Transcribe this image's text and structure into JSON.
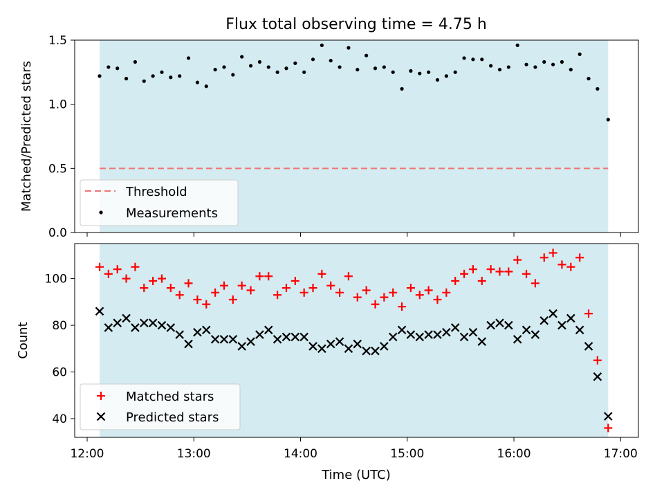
{
  "chart_data": [
    {
      "type": "scatter",
      "title": "Flux total observing time = 4.75 h",
      "ylabel": "Matched/Predicted stars",
      "xlabel": "",
      "ylim": [
        0,
        1.5
      ],
      "xlim": [
        "11:53",
        "17:10"
      ],
      "yticks": [
        0,
        0.5,
        1.0,
        1.5
      ],
      "ytick_labels": [
        "0.0",
        "0.5",
        "1.0",
        "1.5"
      ],
      "observing_window": [
        "12:07",
        "16:53"
      ],
      "observing_window_color": "#d4ebf1",
      "grid": false,
      "legend_position": "lower-left",
      "threshold": {
        "name": "Threshold",
        "value": 0.5,
        "color": "#f07575",
        "style": "dashed"
      },
      "series": [
        {
          "name": "Measurements",
          "color": "#000000",
          "marker": "dot",
          "x": [
            "12:07",
            "12:12",
            "12:17",
            "12:22",
            "12:27",
            "12:32",
            "12:37",
            "12:42",
            "12:47",
            "12:52",
            "12:57",
            "13:02",
            "13:07",
            "13:12",
            "13:17",
            "13:22",
            "13:27",
            "13:32",
            "13:37",
            "13:42",
            "13:47",
            "13:52",
            "13:57",
            "14:02",
            "14:07",
            "14:12",
            "14:17",
            "14:22",
            "14:27",
            "14:32",
            "14:37",
            "14:42",
            "14:47",
            "14:52",
            "14:57",
            "15:02",
            "15:07",
            "15:12",
            "15:17",
            "15:22",
            "15:27",
            "15:32",
            "15:37",
            "15:42",
            "15:47",
            "15:52",
            "15:57",
            "16:02",
            "16:07",
            "16:12",
            "16:17",
            "16:22",
            "16:27",
            "16:32",
            "16:37",
            "16:42",
            "16:47",
            "16:53"
          ],
          "values": [
            1.22,
            1.29,
            1.28,
            1.2,
            1.33,
            1.18,
            1.22,
            1.25,
            1.21,
            1.22,
            1.36,
            1.17,
            1.14,
            1.27,
            1.29,
            1.23,
            1.37,
            1.3,
            1.33,
            1.29,
            1.25,
            1.28,
            1.32,
            1.25,
            1.35,
            1.46,
            1.34,
            1.29,
            1.44,
            1.27,
            1.38,
            1.28,
            1.29,
            1.25,
            1.12,
            1.26,
            1.24,
            1.25,
            1.19,
            1.22,
            1.25,
            1.36,
            1.35,
            1.35,
            1.3,
            1.27,
            1.29,
            1.46,
            1.31,
            1.29,
            1.33,
            1.31,
            1.33,
            1.27,
            1.39,
            1.2,
            1.12,
            0.88
          ]
        }
      ]
    },
    {
      "type": "scatter",
      "title": "",
      "ylabel": "Count",
      "xlabel": "Time (UTC)",
      "ylim": [
        32,
        115
      ],
      "xlim": [
        "11:53",
        "17:10"
      ],
      "yticks": [
        40,
        60,
        80,
        100
      ],
      "ytick_labels": [
        "40",
        "60",
        "80",
        "100"
      ],
      "xticks": [
        "12:00",
        "13:00",
        "14:00",
        "15:00",
        "16:00",
        "17:00"
      ],
      "xtick_labels": [
        "12:00",
        "13:00",
        "14:00",
        "15:00",
        "16:00",
        "17:00"
      ],
      "observing_window": [
        "12:07",
        "16:53"
      ],
      "observing_window_color": "#d4ebf1",
      "grid": false,
      "legend_position": "lower-left",
      "series": [
        {
          "name": "Matched stars",
          "color": "#ff0000",
          "marker": "plus",
          "x": [
            "12:07",
            "12:12",
            "12:17",
            "12:22",
            "12:27",
            "12:32",
            "12:37",
            "12:42",
            "12:47",
            "12:52",
            "12:57",
            "13:02",
            "13:07",
            "13:12",
            "13:17",
            "13:22",
            "13:27",
            "13:32",
            "13:37",
            "13:42",
            "13:47",
            "13:52",
            "13:57",
            "14:02",
            "14:07",
            "14:12",
            "14:17",
            "14:22",
            "14:27",
            "14:32",
            "14:37",
            "14:42",
            "14:47",
            "14:52",
            "14:57",
            "15:02",
            "15:07",
            "15:12",
            "15:17",
            "15:22",
            "15:27",
            "15:32",
            "15:37",
            "15:42",
            "15:47",
            "15:52",
            "15:57",
            "16:02",
            "16:07",
            "16:12",
            "16:17",
            "16:22",
            "16:27",
            "16:32",
            "16:37",
            "16:42",
            "16:47",
            "16:53"
          ],
          "values": [
            105,
            102,
            104,
            100,
            105,
            96,
            99,
            100,
            96,
            93,
            98,
            91,
            89,
            94,
            97,
            91,
            97,
            95,
            101,
            101,
            93,
            96,
            99,
            94,
            96,
            102,
            97,
            94,
            101,
            92,
            95,
            89,
            92,
            94,
            88,
            96,
            93,
            95,
            91,
            94,
            99,
            102,
            104,
            99,
            104,
            103,
            103,
            108,
            102,
            98,
            109,
            111,
            106,
            105,
            109,
            85,
            65,
            36
          ]
        },
        {
          "name": "Predicted stars",
          "color": "#000000",
          "marker": "x",
          "x": [
            "12:07",
            "12:12",
            "12:17",
            "12:22",
            "12:27",
            "12:32",
            "12:37",
            "12:42",
            "12:47",
            "12:52",
            "12:57",
            "13:02",
            "13:07",
            "13:12",
            "13:17",
            "13:22",
            "13:27",
            "13:32",
            "13:37",
            "13:42",
            "13:47",
            "13:52",
            "13:57",
            "14:02",
            "14:07",
            "14:12",
            "14:17",
            "14:22",
            "14:27",
            "14:32",
            "14:37",
            "14:42",
            "14:47",
            "14:52",
            "14:57",
            "15:02",
            "15:07",
            "15:12",
            "15:17",
            "15:22",
            "15:27",
            "15:32",
            "15:37",
            "15:42",
            "15:47",
            "15:52",
            "15:57",
            "16:02",
            "16:07",
            "16:12",
            "16:17",
            "16:22",
            "16:27",
            "16:32",
            "16:37",
            "16:42",
            "16:47",
            "16:53"
          ],
          "values": [
            86,
            79,
            81,
            83,
            79,
            81,
            81,
            80,
            79,
            76,
            72,
            77,
            78,
            74,
            74,
            74,
            71,
            73,
            76,
            78,
            74,
            75,
            75,
            75,
            71,
            70,
            72,
            73,
            70,
            72,
            69,
            69,
            71,
            75,
            78,
            76,
            75,
            76,
            76,
            77,
            79,
            75,
            77,
            73,
            80,
            81,
            80,
            74,
            78,
            76,
            82,
            85,
            80,
            83,
            78,
            71,
            58,
            41
          ]
        }
      ]
    }
  ]
}
